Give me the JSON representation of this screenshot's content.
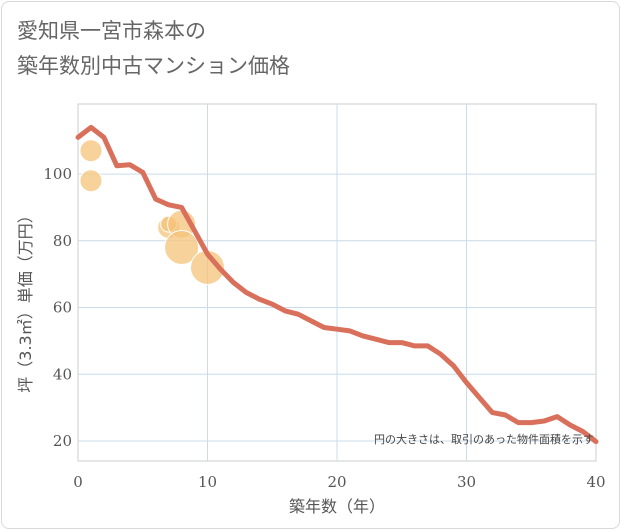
{
  "chart_title": "愛知県一宮市森本の\n築年数別中古マンション価格",
  "chart_data": {
    "type": "line+scatter",
    "title": "愛知県一宮市森本の\n築年数別中古マンション価格",
    "xlabel": "築年数（年）",
    "ylabel": "坪（3.3㎡）単価（万円）",
    "xlim": [
      0,
      40
    ],
    "ylim": [
      14,
      121
    ],
    "x_ticks": [
      0,
      10,
      20,
      30,
      40
    ],
    "y_ticks": [
      20,
      40,
      60,
      80,
      100
    ],
    "grid": true,
    "note": "円の大きさは、取引のあった物件面積を示す",
    "colors": {
      "line": "#d9705b",
      "bubble": "#f5c37a"
    },
    "series": [
      {
        "type": "line",
        "x": [
          0,
          1,
          2,
          3,
          4,
          5,
          6,
          7,
          8,
          9,
          10,
          11,
          12,
          13,
          14,
          15,
          16,
          17,
          18,
          19,
          20,
          21,
          22,
          23,
          24,
          25,
          26,
          27,
          28,
          29,
          30,
          31,
          32,
          33,
          34,
          35,
          36,
          37,
          38,
          39,
          40
        ],
        "y": [
          111.0,
          114.0,
          111.0,
          102.5,
          102.8,
          100.5,
          92.5,
          90.8,
          90.0,
          83.0,
          76.0,
          71.5,
          67.5,
          64.5,
          62.5,
          61.0,
          59.0,
          58.0,
          56.0,
          54.0,
          53.5,
          53.0,
          51.5,
          50.5,
          49.5,
          49.5,
          48.5,
          48.5,
          46.0,
          42.5,
          37.5,
          33.0,
          28.5,
          27.8,
          25.5,
          25.5,
          26.0,
          27.3,
          24.8,
          22.8,
          19.8
        ]
      },
      {
        "type": "bubble",
        "points": [
          {
            "x": 1,
            "y": 107,
            "size": 2
          },
          {
            "x": 1,
            "y": 98,
            "size": 2
          },
          {
            "x": 7,
            "y": 84,
            "size": 2
          },
          {
            "x": 7,
            "y": 85,
            "size": 1
          },
          {
            "x": 8,
            "y": 85,
            "size": 3
          },
          {
            "x": 8,
            "y": 78,
            "size": 4
          },
          {
            "x": 10,
            "y": 72,
            "size": 4
          }
        ]
      }
    ]
  }
}
